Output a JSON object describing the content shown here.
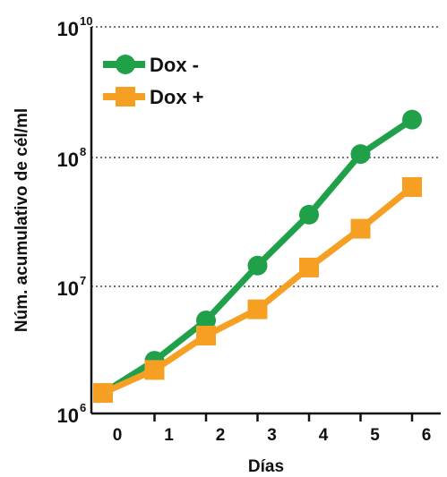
{
  "chart_data": {
    "type": "line",
    "xlabel": "Días",
    "ylabel": "Núm. acumulativo de cél/ml",
    "x": [
      0,
      1,
      2,
      3,
      4,
      5,
      6
    ],
    "x_tick_labels": [
      "0",
      "1",
      "2",
      "3",
      "4",
      "5",
      "6"
    ],
    "y_scale": "log",
    "ylim": [
      1000000,
      10000000000
    ],
    "y_ticks": [
      {
        "value": 1000000,
        "base": "10",
        "exp": "6"
      },
      {
        "value": 10000000,
        "base": "10",
        "exp": "7"
      },
      {
        "value": 100000000,
        "base": "10",
        "exp": "8"
      },
      {
        "value": 10000000000,
        "base": "10",
        "exp": "10"
      }
    ],
    "grid": "horizontal dotted",
    "legend_position": "top-left",
    "series": [
      {
        "name": "Dox -",
        "marker": "circle",
        "color": "#21a04a",
        "values": [
          1450000,
          2600000,
          5400000,
          14500000,
          36000000,
          113000000,
          380000000
        ]
      },
      {
        "name": "Dox +",
        "marker": "square",
        "color": "#f5a023",
        "values": [
          1450000,
          2200000,
          4100000,
          6600000,
          14000000,
          28000000,
          59000000
        ]
      }
    ]
  }
}
